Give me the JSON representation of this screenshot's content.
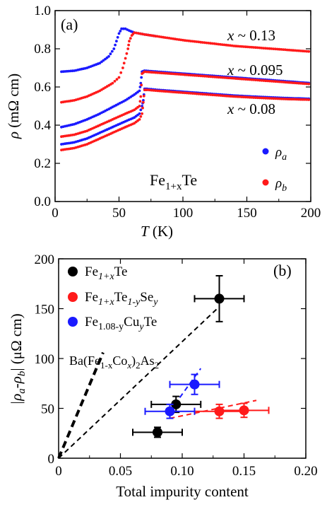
{
  "chart_data": [
    {
      "type": "scatter",
      "panel_label": "(a)",
      "xlabel_main": "T",
      "xlabel_unit": " (K)",
      "ylabel_main": "ρ",
      "ylabel_unit": " (mΩ cm)",
      "xlim": [
        0,
        200
      ],
      "ylim": [
        0.0,
        1.0
      ],
      "xticks": [
        "0",
        "50",
        "100",
        "150",
        "200"
      ],
      "yticks": [
        "0.0",
        "0.2",
        "0.4",
        "0.6",
        "0.8",
        "1.0"
      ],
      "compound": {
        "base": "Fe",
        "sub": "1+x",
        "tail": "Te"
      },
      "legend": [
        {
          "symbol": "ρ",
          "sub": "a",
          "color": "#1a1aff"
        },
        {
          "symbol": "ρ",
          "sub": "b",
          "color": "#ff1a1a"
        }
      ],
      "annotations": [
        {
          "prefix": "x",
          "text": " ~ 0.13"
        },
        {
          "prefix": "x",
          "text": " ~ 0.095"
        },
        {
          "prefix": "x",
          "text": " ~ 0.08"
        }
      ],
      "curves": [
        {
          "name": "ρa x~0.13",
          "color": "#1a1aff",
          "points": [
            [
              5,
              0.68
            ],
            [
              15,
              0.685
            ],
            [
              25,
              0.7
            ],
            [
              35,
              0.725
            ],
            [
              42,
              0.76
            ],
            [
              46,
              0.8
            ],
            [
              48,
              0.84
            ],
            [
              50,
              0.88
            ],
            [
              52,
              0.905
            ],
            [
              55,
              0.905
            ],
            [
              58,
              0.895
            ],
            [
              62,
              0.885
            ],
            [
              70,
              0.875
            ],
            [
              80,
              0.865
            ]
          ]
        },
        {
          "name": "ρb x~0.13",
          "color": "#ff1a1a",
          "points": [
            [
              5,
              0.52
            ],
            [
              15,
              0.53
            ],
            [
              25,
              0.55
            ],
            [
              35,
              0.58
            ],
            [
              45,
              0.62
            ],
            [
              50,
              0.65
            ],
            [
              53,
              0.7
            ],
            [
              55,
              0.75
            ],
            [
              57,
              0.8
            ],
            [
              58,
              0.84
            ],
            [
              60,
              0.87
            ],
            [
              62,
              0.885
            ],
            [
              70,
              0.875
            ],
            [
              80,
              0.865
            ],
            [
              100,
              0.845
            ],
            [
              120,
              0.83
            ],
            [
              140,
              0.815
            ],
            [
              160,
              0.805
            ],
            [
              180,
              0.795
            ],
            [
              200,
              0.785
            ]
          ]
        },
        {
          "name": "ρa x~0.095",
          "color": "#1a1aff",
          "points": [
            [
              5,
              0.39
            ],
            [
              15,
              0.405
            ],
            [
              25,
              0.43
            ],
            [
              35,
              0.46
            ],
            [
              45,
              0.495
            ],
            [
              55,
              0.53
            ],
            [
              62,
              0.56
            ],
            [
              66,
              0.58
            ],
            [
              67,
              0.62
            ],
            [
              68,
              0.68
            ],
            [
              70,
              0.685
            ],
            [
              80,
              0.68
            ],
            [
              100,
              0.67
            ],
            [
              120,
              0.66
            ],
            [
              140,
              0.65
            ],
            [
              160,
              0.64
            ],
            [
              180,
              0.63
            ],
            [
              200,
              0.62
            ]
          ]
        },
        {
          "name": "ρb x~0.095",
          "color": "#ff1a1a",
          "points": [
            [
              5,
              0.34
            ],
            [
              15,
              0.35
            ],
            [
              25,
              0.37
            ],
            [
              35,
              0.4
            ],
            [
              45,
              0.43
            ],
            [
              55,
              0.46
            ],
            [
              62,
              0.48
            ],
            [
              66,
              0.5
            ],
            [
              67,
              0.55
            ],
            [
              68,
              0.67
            ],
            [
              70,
              0.68
            ],
            [
              80,
              0.675
            ],
            [
              100,
              0.665
            ],
            [
              120,
              0.655
            ],
            [
              140,
              0.645
            ],
            [
              160,
              0.635
            ],
            [
              180,
              0.625
            ],
            [
              200,
              0.615
            ]
          ]
        },
        {
          "name": "ρa x~0.08",
          "color": "#1a1aff",
          "points": [
            [
              5,
              0.3
            ],
            [
              15,
              0.31
            ],
            [
              25,
              0.33
            ],
            [
              35,
              0.36
            ],
            [
              45,
              0.39
            ],
            [
              55,
              0.42
            ],
            [
              62,
              0.44
            ],
            [
              66,
              0.46
            ],
            [
              68,
              0.5
            ],
            [
              69,
              0.53
            ],
            [
              70,
              0.59
            ],
            [
              72,
              0.59
            ],
            [
              80,
              0.585
            ],
            [
              100,
              0.575
            ],
            [
              120,
              0.565
            ],
            [
              140,
              0.555
            ],
            [
              160,
              0.548
            ],
            [
              180,
              0.542
            ],
            [
              200,
              0.538
            ]
          ]
        },
        {
          "name": "ρb x~0.08",
          "color": "#ff1a1a",
          "points": [
            [
              5,
              0.27
            ],
            [
              15,
              0.28
            ],
            [
              25,
              0.3
            ],
            [
              35,
              0.33
            ],
            [
              45,
              0.36
            ],
            [
              55,
              0.39
            ],
            [
              62,
              0.41
            ],
            [
              66,
              0.43
            ],
            [
              68,
              0.46
            ],
            [
              69,
              0.52
            ],
            [
              70,
              0.585
            ],
            [
              72,
              0.585
            ],
            [
              80,
              0.58
            ],
            [
              100,
              0.57
            ],
            [
              120,
              0.56
            ],
            [
              140,
              0.55
            ],
            [
              160,
              0.543
            ],
            [
              180,
              0.537
            ],
            [
              200,
              0.533
            ]
          ]
        }
      ]
    },
    {
      "type": "scatter",
      "panel_label": "(b)",
      "xlabel": "Total impurity content",
      "ylabel_main": "|ρ",
      "ylabel_sub1": "a",
      "ylabel_mid": "-ρ",
      "ylabel_sub2": "b",
      "ylabel_unit": "| (μΩ cm)",
      "xlim": [
        0,
        0.2
      ],
      "ylim": [
        0,
        200
      ],
      "xticks": [
        "0",
        "0.05",
        "0.10",
        "0.15",
        "0.20"
      ],
      "yticks": [
        "0",
        "50",
        "100",
        "150",
        "200"
      ],
      "annotation": {
        "text": "Ba(Fe",
        "sub1": "1-x",
        "mid": "Co",
        "sub2": "x",
        "tail": ")",
        "sub3": "2",
        "end": "As",
        "sub4": "2"
      },
      "legend": [
        {
          "parts": [
            [
              "Fe",
              ""
            ],
            [
              "1+x",
              "sub"
            ],
            [
              "Te",
              ""
            ]
          ],
          "color": "#000000"
        },
        {
          "parts": [
            [
              "Fe",
              ""
            ],
            [
              "1+x",
              "sub"
            ],
            [
              "Te",
              ""
            ],
            [
              "1-y",
              "sub"
            ],
            [
              "Se",
              ""
            ],
            [
              "y",
              "sub"
            ]
          ],
          "color": "#ff1a1a"
        },
        {
          "parts": [
            [
              "Fe",
              ""
            ],
            [
              "1.08-y",
              "sub"
            ],
            [
              "Cu",
              ""
            ],
            [
              "y",
              "sub"
            ],
            [
              "Te",
              ""
            ]
          ],
          "color": "#1a1aff"
        }
      ],
      "series": [
        {
          "name": "Fe1+xTe",
          "color": "#000000",
          "points": [
            {
              "x": 0.08,
              "y": 26,
              "xerr": 0.02,
              "yerr": 5
            },
            {
              "x": 0.095,
              "y": 54,
              "xerr": 0.02,
              "yerr": 8
            },
            {
              "x": 0.13,
              "y": 160,
              "xerr": 0.02,
              "yerr": 23
            }
          ]
        },
        {
          "name": "Fe1+xTe1-ySey",
          "color": "#ff1a1a",
          "points": [
            {
              "x": 0.13,
              "y": 47,
              "xerr": 0.02,
              "yerr": 7
            },
            {
              "x": 0.15,
              "y": 48,
              "xerr": 0.02,
              "yerr": 7
            }
          ]
        },
        {
          "name": "Fe1.08-yCuyTe",
          "color": "#1a1aff",
          "points": [
            {
              "x": 0.09,
              "y": 47,
              "xerr": 0.02,
              "yerr": 7
            },
            {
              "x": 0.11,
              "y": 74,
              "xerr": 0.02,
              "yerr": 10
            }
          ]
        }
      ],
      "fit_lines": [
        {
          "color": "#000000",
          "width": 4,
          "from": [
            0,
            0
          ],
          "to": [
            0.036,
            106
          ]
        },
        {
          "color": "#000000",
          "width": 2,
          "from": [
            0,
            0
          ],
          "to": [
            0.13,
            152
          ]
        },
        {
          "color": "#1a1aff",
          "width": 2,
          "from": [
            0.09,
            47
          ],
          "to": [
            0.115,
            90
          ]
        },
        {
          "color": "#ff1a1a",
          "width": 2,
          "from": [
            0.09,
            40
          ],
          "to": [
            0.16,
            58
          ]
        }
      ]
    }
  ]
}
